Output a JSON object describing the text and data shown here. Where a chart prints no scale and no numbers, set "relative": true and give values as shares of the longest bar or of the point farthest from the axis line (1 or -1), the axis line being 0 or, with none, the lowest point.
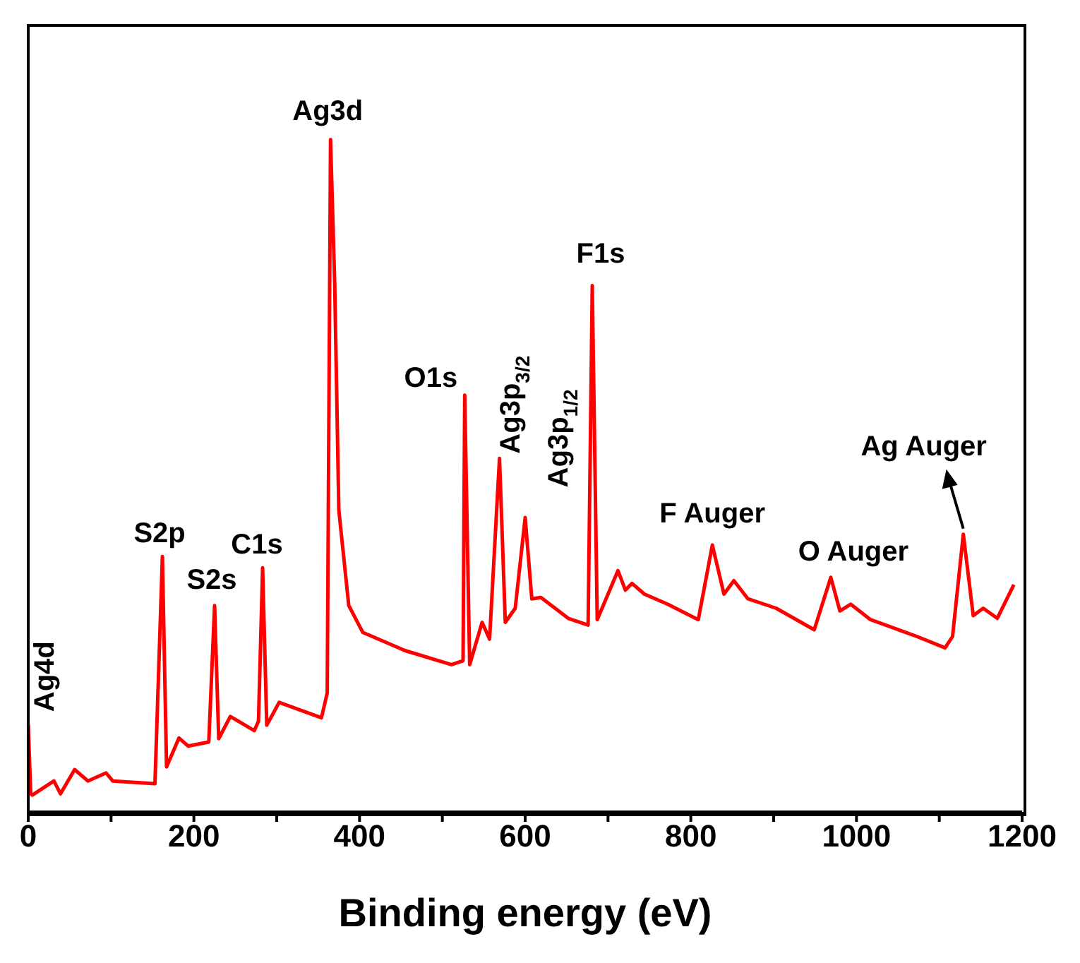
{
  "chart_data": {
    "type": "line",
    "xlabel": "Binding energy (eV)",
    "relative": true,
    "xlim": [
      0,
      1200
    ],
    "xticks": [
      0,
      {
        "value": 100,
        "label": null
      },
      200,
      {
        "value": 300,
        "label": null
      },
      400,
      {
        "value": 500,
        "label": null
      },
      600,
      {
        "value": 700,
        "label": null
      },
      800,
      {
        "value": 900,
        "label": null
      },
      1000,
      {
        "value": 1100,
        "label": null
      },
      1200
    ],
    "series": [
      {
        "color": "#ff0000",
        "x": [
          0,
          3,
          5,
          31,
          39,
          56,
          72,
          94,
          102,
          153,
          162,
          167,
          182,
          193,
          218,
          225,
          230,
          244,
          273,
          278,
          283,
          288,
          303,
          354,
          361,
          365,
          370,
          375,
          387,
          404,
          455,
          511,
          525,
          527,
          533,
          548,
          557,
          569,
          576,
          588,
          600,
          608,
          619,
          652,
          676,
          681,
          687,
          712,
          721,
          729,
          744,
          772,
          809,
          826,
          840,
          852,
          869,
          903,
          949,
          969,
          980,
          993,
          1017,
          1073,
          1107,
          1116,
          1129,
          1141,
          1153,
          1170,
          1190
        ],
        "values": [
          0.13,
          0.027,
          0.025,
          0.046,
          0.027,
          0.063,
          0.046,
          0.058,
          0.046,
          0.042,
          0.38,
          0.067,
          0.11,
          0.098,
          0.104,
          0.307,
          0.109,
          0.142,
          0.121,
          0.135,
          0.363,
          0.129,
          0.163,
          0.14,
          0.177,
          1.0,
          0.787,
          0.449,
          0.307,
          0.267,
          0.24,
          0.219,
          0.225,
          0.62,
          0.219,
          0.282,
          0.257,
          0.526,
          0.282,
          0.303,
          0.438,
          0.317,
          0.319,
          0.288,
          0.278,
          0.783,
          0.286,
          0.359,
          0.33,
          0.34,
          0.324,
          0.309,
          0.286,
          0.397,
          0.324,
          0.344,
          0.317,
          0.303,
          0.271,
          0.349,
          0.299,
          0.309,
          0.286,
          0.261,
          0.244,
          0.261,
          0.413,
          0.292,
          0.303,
          0.288,
          0.338
        ]
      }
    ],
    "annotations": [
      {
        "text": "Ag4d",
        "x": 0,
        "y": 0.13
      },
      {
        "text": "S2p",
        "x": 162,
        "y": 0.38
      },
      {
        "text": "S2s",
        "x": 225,
        "y": 0.307
      },
      {
        "text": "C1s",
        "x": 283,
        "y": 0.363
      },
      {
        "text": "Ag3d",
        "x": 365,
        "y": 1.0
      },
      {
        "text": "O1s",
        "x": 527,
        "y": 0.62
      },
      {
        "text": "Ag3p$_{3/2}$",
        "x": 569,
        "y": 0.526
      },
      {
        "text": "Ag3p$_{1/2}$",
        "x": 600,
        "y": 0.438
      },
      {
        "text": "F1s",
        "x": 681,
        "y": 0.783
      },
      {
        "text": "F Auger",
        "x": 826,
        "y": 0.397
      },
      {
        "text": "O Auger",
        "x": 969,
        "y": 0.349
      },
      {
        "text": "Ag Auger",
        "x": 1129,
        "y": 0.413
      }
    ]
  }
}
